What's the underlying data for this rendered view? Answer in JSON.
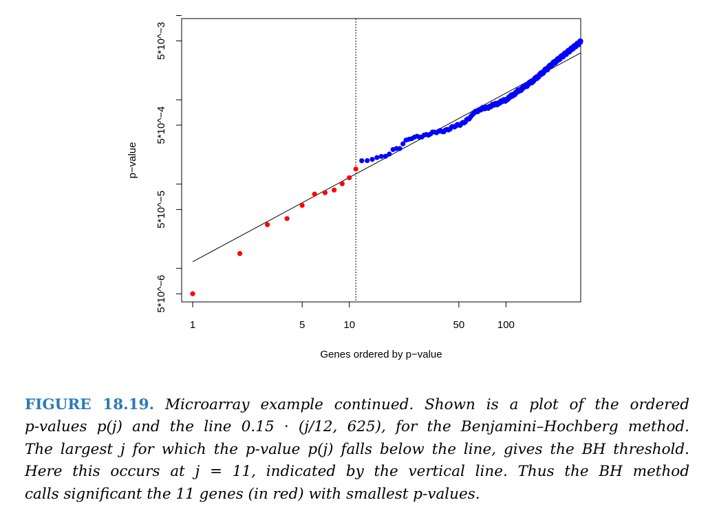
{
  "chart_data": {
    "type": "scatter",
    "title": "",
    "xlabel": "Genes ordered by p−value",
    "ylabel": "p−value",
    "x_scale": "log",
    "y_scale": "log",
    "xlim": [
      0.85,
      300
    ],
    "ylim": [
      4e-06,
      0.0092
    ],
    "x_ticks": [
      {
        "value": 1,
        "label": "1"
      },
      {
        "value": 5,
        "label": "5"
      },
      {
        "value": 10,
        "label": "10"
      },
      {
        "value": 50,
        "label": "50"
      },
      {
        "value": 100,
        "label": "100"
      }
    ],
    "y_ticks": [
      {
        "value": 5e-06,
        "label": "5*10^−6"
      },
      {
        "value": 1e-05,
        "label": ""
      },
      {
        "value": 5e-05,
        "label": "5*10^−5"
      },
      {
        "value": 0.0001,
        "label": ""
      },
      {
        "value": 0.0005,
        "label": "5*10^−4"
      },
      {
        "value": 0.001,
        "label": ""
      },
      {
        "value": 0.005,
        "label": "5*10^−3"
      },
      {
        "value": 0.01,
        "label": ""
      }
    ],
    "vertical_line": {
      "x": 11,
      "style": "dotted"
    },
    "reference_line": {
      "slope_per_rank": 1.2e-05,
      "x_start": 1,
      "x_end": 300
    },
    "series": [
      {
        "color": "#ff0000",
        "x": [
          1,
          2,
          3,
          4,
          5,
          6,
          7,
          8,
          9,
          10,
          11
        ],
        "y": [
          5e-06,
          1.5e-05,
          3.3e-05,
          3.9e-05,
          5.6e-05,
          7.6e-05,
          7.9e-05,
          8.5e-05,
          0.000101,
          0.000119,
          0.000151
        ]
      },
      {
        "color": "#0000ff",
        "anchors_x": [
          12,
          13,
          14,
          15,
          16,
          17,
          18,
          19,
          20,
          21,
          22,
          23,
          24,
          25,
          30,
          40,
          50,
          60,
          62,
          65,
          80,
          100,
          150,
          200,
          300
        ],
        "anchors_y": [
          0.000182,
          0.000188,
          0.0002,
          0.000205,
          0.00021,
          0.00022,
          0.000235,
          0.000255,
          0.000262,
          0.00027,
          0.0003,
          0.00032,
          0.000335,
          0.00035,
          0.00038,
          0.00043,
          0.0005,
          0.00062,
          0.0007,
          0.00074,
          0.00084,
          0.001,
          0.0017,
          0.0027,
          0.0049
        ]
      }
    ]
  },
  "caption": {
    "label": "FIGURE 18.19.",
    "lines": [
      " Microarray example continued. Shown is a plot of the ordered",
      "p-values p(j) and the line 0.15 · (j/12, 625), for the Benjamini–Hochberg method.",
      "The largest j for which the p-value p(j) falls below the line, gives the BH threshold.",
      "Here this occurs at j = 11, indicated by the vertical line. Thus the BH method",
      "calls significant the 11 genes (in red) with smallest p-values."
    ]
  }
}
